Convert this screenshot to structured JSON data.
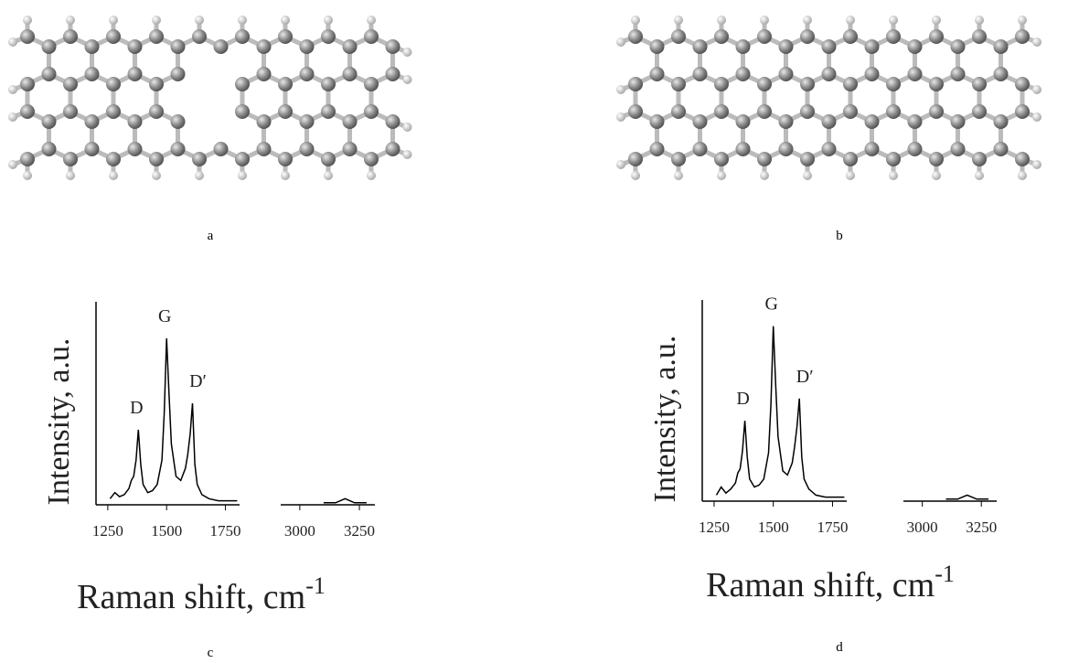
{
  "labels": [
    "a",
    "b",
    "c",
    "d"
  ],
  "chart_data": [
    {
      "type": "line",
      "ylabel": "Intensity, a.u.",
      "xlabel": "Raman shift, cm",
      "xlabel_sup": "-1",
      "color": "#000000",
      "ylim": [
        0,
        100
      ],
      "segments": [
        {
          "xlim": [
            1200,
            1810
          ],
          "xticks": [
            1250,
            1500,
            1750
          ],
          "x": [
            1260,
            1280,
            1300,
            1320,
            1340,
            1350,
            1360,
            1370,
            1380,
            1390,
            1400,
            1420,
            1440,
            1460,
            1480,
            1490,
            1500,
            1510,
            1520,
            1540,
            1560,
            1580,
            1590,
            1600,
            1610,
            1620,
            1630,
            1650,
            1680,
            1720,
            1800
          ],
          "values": [
            3,
            6,
            4,
            5,
            8,
            12,
            14,
            22,
            37,
            20,
            10,
            6,
            7,
            10,
            22,
            45,
            82,
            55,
            30,
            14,
            12,
            18,
            25,
            35,
            50,
            20,
            10,
            5,
            3,
            2,
            2
          ]
        },
        {
          "xlim": [
            2920,
            3315
          ],
          "xticks": [
            3000,
            3250
          ],
          "x": [
            3100,
            3150,
            3170,
            3190,
            3210,
            3230,
            3280
          ],
          "values": [
            1,
            1,
            2,
            3,
            2,
            1,
            1
          ]
        }
      ],
      "annotations": [
        {
          "text": "D",
          "x": 1380
        },
        {
          "text": "G",
          "x": 1500
        },
        {
          "text": "D′",
          "x": 1610
        }
      ]
    },
    {
      "type": "line",
      "ylabel": "Intensity, a.u.",
      "xlabel": "Raman shift, cm",
      "xlabel_sup": "-1",
      "color": "#000000",
      "ylim": [
        0,
        100
      ],
      "segments": [
        {
          "xlim": [
            1200,
            1810
          ],
          "xticks": [
            1250,
            1500,
            1750
          ],
          "x": [
            1260,
            1280,
            1300,
            1320,
            1340,
            1350,
            1360,
            1370,
            1380,
            1390,
            1400,
            1420,
            1440,
            1460,
            1480,
            1490,
            1500,
            1510,
            1520,
            1540,
            1560,
            1580,
            1590,
            1600,
            1610,
            1620,
            1630,
            1650,
            1680,
            1720,
            1800
          ],
          "values": [
            3,
            7,
            4,
            6,
            9,
            14,
            16,
            25,
            40,
            22,
            11,
            7,
            8,
            11,
            24,
            48,
            87,
            58,
            32,
            15,
            13,
            19,
            27,
            37,
            51,
            22,
            11,
            6,
            3,
            2,
            2
          ]
        },
        {
          "xlim": [
            2920,
            3315
          ],
          "xticks": [
            3000,
            3250
          ],
          "x": [
            3100,
            3150,
            3170,
            3190,
            3210,
            3230,
            3280
          ],
          "values": [
            1,
            1,
            2,
            3,
            2,
            1,
            1
          ]
        }
      ],
      "annotations": [
        {
          "text": "D",
          "x": 1380
        },
        {
          "text": "G",
          "x": 1500
        },
        {
          "text": "D′",
          "x": 1610
        }
      ]
    }
  ]
}
